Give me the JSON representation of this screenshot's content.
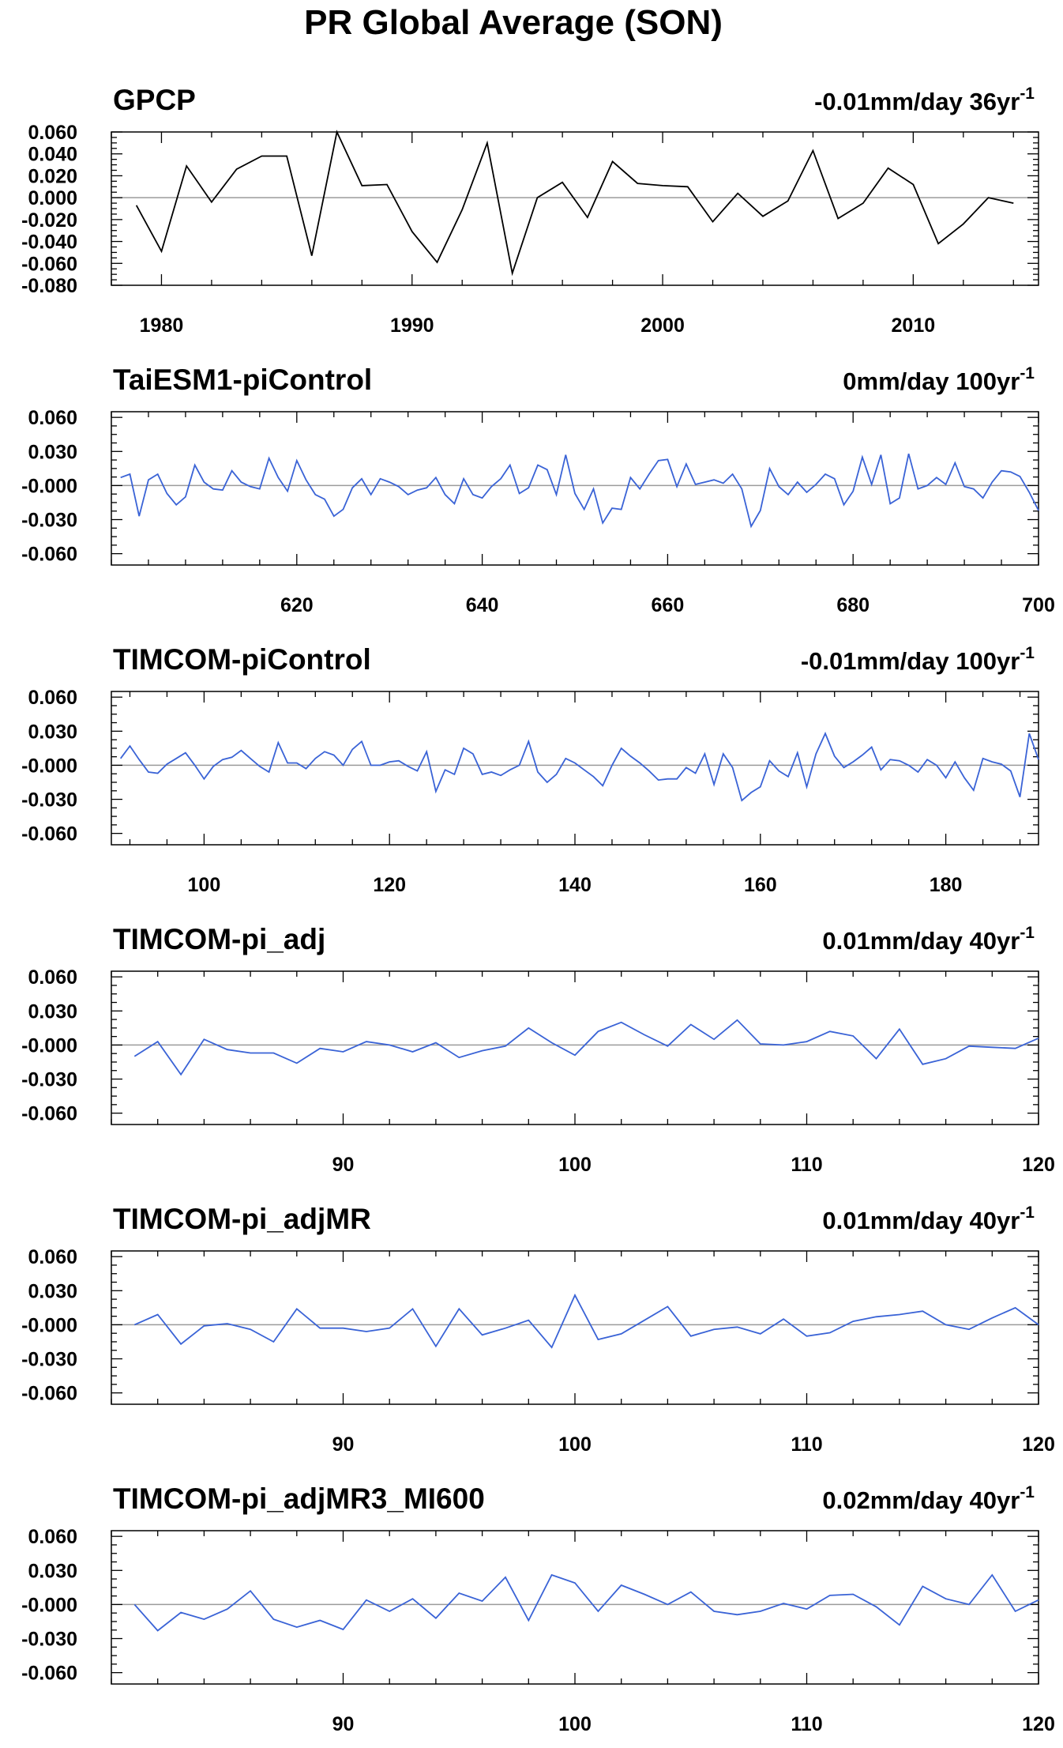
{
  "title": "PR Global Average (SON)",
  "colors": {
    "obs": "#000000",
    "model": "#3a63d6",
    "zero_line": "#9b9b9b"
  },
  "chart_data": [
    {
      "type": "line",
      "title": "GPCP",
      "trend_label": "-0.01mm/day 36yr",
      "trend_exponent": "-1",
      "xlim": [
        1978,
        2015
      ],
      "ylim": [
        -0.08,
        0.06
      ],
      "yticks": [
        0.06,
        0.04,
        0.02,
        0.0,
        -0.02,
        -0.04,
        -0.06,
        -0.08
      ],
      "ytick_labels": [
        "0.060",
        "0.040",
        "0.020",
        "0.000",
        "-0.020",
        "-0.040",
        "-0.060",
        "-0.080"
      ],
      "xticks": [
        1980,
        1990,
        2000,
        2010
      ],
      "xtick_labels": [
        "1980",
        "1990",
        "2000",
        "2010"
      ],
      "zero_line": true,
      "series": [
        {
          "color": "#000000",
          "x": [
            1979,
            1980,
            1981,
            1982,
            1983,
            1984,
            1985,
            1986,
            1987,
            1988,
            1989,
            1990,
            1991,
            1992,
            1993,
            1994,
            1995,
            1996,
            1997,
            1998,
            1999,
            2000,
            2001,
            2002,
            2003,
            2004,
            2005,
            2006,
            2007,
            2008,
            2009,
            2010,
            2011,
            2012,
            2013,
            2014
          ],
          "values": [
            -0.007,
            -0.049,
            0.029,
            -0.004,
            0.026,
            0.038,
            0.038,
            -0.053,
            0.06,
            0.011,
            0.012,
            -0.031,
            -0.059,
            -0.011,
            0.05,
            -0.069,
            0.0,
            0.014,
            -0.018,
            0.033,
            0.013,
            0.011,
            0.01,
            -0.022,
            0.004,
            -0.017,
            -0.003,
            0.043,
            -0.019,
            -0.005,
            0.027,
            0.012,
            -0.042,
            -0.024,
            0.0,
            -0.005
          ]
        }
      ]
    },
    {
      "type": "line",
      "title": "TaiESM1-piControl",
      "trend_label": "0mm/day 100yr",
      "trend_exponent": "-1",
      "xlim": [
        600,
        700
      ],
      "ylim": [
        -0.07,
        0.065
      ],
      "yticks": [
        0.06,
        0.03,
        0.0,
        -0.03,
        -0.06
      ],
      "ytick_labels": [
        "0.060",
        "0.030",
        "-0.000",
        "-0.030",
        "-0.060"
      ],
      "xticks": [
        620,
        640,
        660,
        680,
        700
      ],
      "xtick_labels": [
        "620",
        "640",
        "660",
        "680",
        "700"
      ],
      "zero_line": true,
      "series": [
        {
          "color": "#3a63d6",
          "x": [
            601,
            602,
            603,
            604,
            605,
            606,
            607,
            608,
            609,
            610,
            611,
            612,
            613,
            614,
            615,
            616,
            617,
            618,
            619,
            620,
            621,
            622,
            623,
            624,
            625,
            626,
            627,
            628,
            629,
            630,
            631,
            632,
            633,
            634,
            635,
            636,
            637,
            638,
            639,
            640,
            641,
            642,
            643,
            644,
            645,
            646,
            647,
            648,
            649,
            650,
            651,
            652,
            653,
            654,
            655,
            656,
            657,
            658,
            659,
            660,
            661,
            662,
            663,
            664,
            665,
            666,
            667,
            668,
            669,
            670,
            671,
            672,
            673,
            674,
            675,
            676,
            677,
            678,
            679,
            680,
            681,
            682,
            683,
            684,
            685,
            686,
            687,
            688,
            689,
            690,
            691,
            692,
            693,
            694,
            695,
            696,
            697,
            698,
            699,
            700
          ],
          "values": [
            0.007,
            0.01,
            -0.027,
            0.005,
            0.01,
            -0.007,
            -0.017,
            -0.01,
            0.018,
            0.003,
            -0.003,
            -0.004,
            0.013,
            0.003,
            -0.001,
            -0.003,
            0.024,
            0.007,
            -0.005,
            0.022,
            0.005,
            -0.008,
            -0.012,
            -0.027,
            -0.021,
            -0.002,
            0.006,
            -0.008,
            0.006,
            0.003,
            -0.001,
            -0.008,
            -0.004,
            -0.002,
            0.007,
            -0.008,
            -0.016,
            0.006,
            -0.008,
            -0.011,
            -0.001,
            0.006,
            0.018,
            -0.007,
            -0.002,
            0.018,
            0.014,
            -0.008,
            0.027,
            -0.007,
            -0.021,
            -0.003,
            -0.033,
            -0.02,
            -0.021,
            0.007,
            -0.003,
            0.01,
            0.022,
            0.023,
            -0.001,
            0.019,
            0.001,
            0.003,
            0.005,
            0.002,
            0.01,
            -0.003,
            -0.036,
            -0.022,
            0.015,
            -0.001,
            -0.008,
            0.003,
            -0.006,
            0.001,
            0.01,
            0.006,
            -0.017,
            -0.005,
            0.025,
            0.001,
            0.027,
            -0.016,
            -0.011,
            0.028,
            -0.003,
            0.0,
            0.007,
            0.001,
            0.02,
            -0.001,
            -0.003,
            -0.011,
            0.003,
            0.013,
            0.012,
            0.008,
            -0.006,
            -0.022
          ]
        }
      ]
    },
    {
      "type": "line",
      "title": "TIMCOM-piControl",
      "trend_label": "-0.01mm/day 100yr",
      "trend_exponent": "-1",
      "xlim": [
        90,
        190
      ],
      "ylim": [
        -0.07,
        0.065
      ],
      "yticks": [
        0.06,
        0.03,
        0.0,
        -0.03,
        -0.06
      ],
      "ytick_labels": [
        "0.060",
        "0.030",
        "-0.000",
        "-0.030",
        "-0.060"
      ],
      "xticks": [
        100,
        120,
        140,
        160,
        180
      ],
      "xtick_labels": [
        "100",
        "120",
        "140",
        "160",
        "180"
      ],
      "zero_line": true,
      "series": [
        {
          "color": "#3a63d6",
          "x": [
            91,
            92,
            93,
            94,
            95,
            96,
            97,
            98,
            99,
            100,
            101,
            102,
            103,
            104,
            105,
            106,
            107,
            108,
            109,
            110,
            111,
            112,
            113,
            114,
            115,
            116,
            117,
            118,
            119,
            120,
            121,
            122,
            123,
            124,
            125,
            126,
            127,
            128,
            129,
            130,
            131,
            132,
            133,
            134,
            135,
            136,
            137,
            138,
            139,
            140,
            141,
            142,
            143,
            144,
            145,
            146,
            147,
            148,
            149,
            150,
            151,
            152,
            153,
            154,
            155,
            156,
            157,
            158,
            159,
            160,
            161,
            162,
            163,
            164,
            165,
            166,
            167,
            168,
            169,
            170,
            171,
            172,
            173,
            174,
            175,
            176,
            177,
            178,
            179,
            180,
            181,
            182,
            183,
            184,
            185,
            186,
            187,
            188,
            189,
            190
          ],
          "values": [
            0.006,
            0.017,
            0.005,
            -0.006,
            -0.007,
            0.001,
            0.006,
            0.011,
            0.0,
            -0.012,
            -0.001,
            0.005,
            0.007,
            0.013,
            0.006,
            -0.001,
            -0.006,
            0.02,
            0.002,
            0.002,
            -0.003,
            0.006,
            0.012,
            0.009,
            0.0,
            0.014,
            0.021,
            0.0,
            0.0,
            0.003,
            0.004,
            -0.001,
            -0.005,
            0.012,
            -0.023,
            -0.004,
            -0.008,
            0.015,
            0.01,
            -0.008,
            -0.006,
            -0.009,
            -0.004,
            0.0,
            0.021,
            -0.006,
            -0.015,
            -0.008,
            0.006,
            0.002,
            -0.004,
            -0.01,
            -0.018,
            0.0,
            0.015,
            0.008,
            0.002,
            -0.005,
            -0.013,
            -0.012,
            -0.012,
            -0.002,
            -0.007,
            0.01,
            -0.017,
            0.01,
            -0.002,
            -0.031,
            -0.024,
            -0.019,
            0.004,
            -0.005,
            -0.01,
            0.011,
            -0.019,
            0.01,
            0.028,
            0.008,
            -0.002,
            0.003,
            0.009,
            0.016,
            -0.004,
            0.005,
            0.004,
            0.0,
            -0.006,
            0.005,
            0.0,
            -0.011,
            0.003,
            -0.011,
            -0.022,
            0.006,
            0.003,
            0.001,
            -0.005,
            -0.028,
            0.028,
            0.005
          ]
        }
      ]
    },
    {
      "type": "line",
      "title": "TIMCOM-pi_adj",
      "trend_label": "0.01mm/day 40yr",
      "trend_exponent": "-1",
      "xlim": [
        80,
        120
      ],
      "ylim": [
        -0.07,
        0.065
      ],
      "yticks": [
        0.06,
        0.03,
        0.0,
        -0.03,
        -0.06
      ],
      "ytick_labels": [
        "0.060",
        "0.030",
        "-0.000",
        "-0.030",
        "-0.060"
      ],
      "xticks": [
        90,
        100,
        110,
        120
      ],
      "xtick_labels": [
        "90",
        "100",
        "110",
        "120"
      ],
      "zero_line": true,
      "series": [
        {
          "color": "#3a63d6",
          "x": [
            81,
            82,
            83,
            84,
            85,
            86,
            87,
            88,
            89,
            90,
            91,
            92,
            93,
            94,
            95,
            96,
            97,
            98,
            99,
            100,
            101,
            102,
            103,
            104,
            105,
            106,
            107,
            108,
            109,
            110,
            111,
            112,
            113,
            114,
            115,
            116,
            117,
            118,
            119,
            120
          ],
          "values": [
            -0.01,
            0.003,
            -0.026,
            0.005,
            -0.004,
            -0.007,
            -0.007,
            -0.016,
            -0.003,
            -0.006,
            0.003,
            0.0,
            -0.006,
            0.002,
            -0.011,
            -0.005,
            -0.001,
            0.015,
            0.002,
            -0.009,
            0.012,
            0.02,
            0.009,
            -0.001,
            0.018,
            0.005,
            0.022,
            0.001,
            0.0,
            0.003,
            0.012,
            0.008,
            -0.012,
            0.014,
            -0.017,
            -0.012,
            -0.001,
            -0.002,
            -0.003,
            0.006
          ]
        }
      ]
    },
    {
      "type": "line",
      "title": "TIMCOM-pi_adjMR",
      "trend_label": "0.01mm/day 40yr",
      "trend_exponent": "-1",
      "xlim": [
        80,
        120
      ],
      "ylim": [
        -0.07,
        0.065
      ],
      "yticks": [
        0.06,
        0.03,
        0.0,
        -0.03,
        -0.06
      ],
      "ytick_labels": [
        "0.060",
        "0.030",
        "-0.000",
        "-0.030",
        "-0.060"
      ],
      "xticks": [
        90,
        100,
        110,
        120
      ],
      "xtick_labels": [
        "90",
        "100",
        "110",
        "120"
      ],
      "zero_line": true,
      "series": [
        {
          "color": "#3a63d6",
          "x": [
            81,
            82,
            83,
            84,
            85,
            86,
            87,
            88,
            89,
            90,
            91,
            92,
            93,
            94,
            95,
            96,
            97,
            98,
            99,
            100,
            101,
            102,
            103,
            104,
            105,
            106,
            107,
            108,
            109,
            110,
            111,
            112,
            113,
            114,
            115,
            116,
            117,
            118,
            119,
            120
          ],
          "values": [
            0.0,
            0.009,
            -0.017,
            -0.001,
            0.001,
            -0.004,
            -0.015,
            0.014,
            -0.003,
            -0.003,
            -0.006,
            -0.003,
            0.014,
            -0.019,
            0.014,
            -0.009,
            -0.003,
            0.004,
            -0.02,
            0.026,
            -0.013,
            -0.008,
            0.004,
            0.016,
            -0.01,
            -0.004,
            -0.002,
            -0.008,
            0.005,
            -0.01,
            -0.007,
            0.003,
            0.007,
            0.009,
            0.012,
            0.0,
            -0.004,
            0.006,
            0.015,
            0.0
          ]
        }
      ]
    },
    {
      "type": "line",
      "title": "TIMCOM-pi_adjMR3_MI600",
      "trend_label": "0.02mm/day 40yr",
      "trend_exponent": "-1",
      "xlim": [
        80,
        120
      ],
      "ylim": [
        -0.07,
        0.065
      ],
      "yticks": [
        0.06,
        0.03,
        0.0,
        -0.03,
        -0.06
      ],
      "ytick_labels": [
        "0.060",
        "0.030",
        "-0.000",
        "-0.030",
        "-0.060"
      ],
      "xticks": [
        90,
        100,
        110,
        120
      ],
      "xtick_labels": [
        "90",
        "100",
        "110",
        "120"
      ],
      "zero_line": true,
      "series": [
        {
          "color": "#3a63d6",
          "x": [
            81,
            82,
            83,
            84,
            85,
            86,
            87,
            88,
            89,
            90,
            91,
            92,
            93,
            94,
            95,
            96,
            97,
            98,
            99,
            100,
            101,
            102,
            103,
            104,
            105,
            106,
            107,
            108,
            109,
            110,
            111,
            112,
            113,
            114,
            115,
            116,
            117,
            118,
            119,
            120
          ],
          "values": [
            0.0,
            -0.023,
            -0.007,
            -0.013,
            -0.004,
            0.012,
            -0.013,
            -0.02,
            -0.014,
            -0.022,
            0.004,
            -0.006,
            0.005,
            -0.012,
            0.01,
            0.003,
            0.024,
            -0.014,
            0.026,
            0.019,
            -0.006,
            0.017,
            0.009,
            0.0,
            0.011,
            -0.006,
            -0.009,
            -0.006,
            0.001,
            -0.004,
            0.008,
            0.009,
            -0.002,
            -0.018,
            0.016,
            0.005,
            0.0,
            0.026,
            -0.006,
            0.004
          ]
        }
      ]
    }
  ]
}
